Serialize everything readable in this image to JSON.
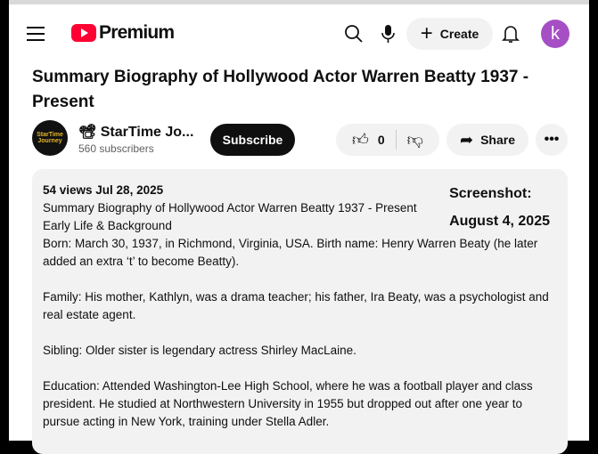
{
  "header": {
    "logo_text": "Premium",
    "create_label": "Create",
    "avatar_letter": "k"
  },
  "video": {
    "title": "Summary Biography of Hollywood Actor Warren Beatty 1937 - Present",
    "channel": {
      "name": "📽 StarTime Jo...",
      "avatar_text": "StarTime Journey",
      "subscribers": "560 subscribers"
    },
    "subscribe_label": "Subscribe",
    "likes": "0",
    "share_label": "Share"
  },
  "description": {
    "meta": "54 views  Jul 28, 2025",
    "screenshot_label": "Screenshot:",
    "screenshot_date": "August 4, 2025",
    "lines": [
      "Summary Biography of Hollywood Actor Warren Beatty 1937 - Present",
      "Early Life & Background",
      "Born: March 30, 1937, in Richmond, Virginia, USA. Birth name: Henry Warren Beaty (he later added an extra ‘t’ to become Beatty).",
      "",
      "Family: His mother, Kathlyn, was a drama teacher; his father, Ira Beaty, was a psychologist and real estate agent.",
      "",
      "Sibling: Older sister is legendary actress Shirley MacLaine.",
      "",
      "Education: Attended Washington-Lee High School, where he was a football player and class president. He studied at Northwestern University in 1955 but dropped out after one year to pursue acting in New York, training under Stella Adler."
    ]
  }
}
